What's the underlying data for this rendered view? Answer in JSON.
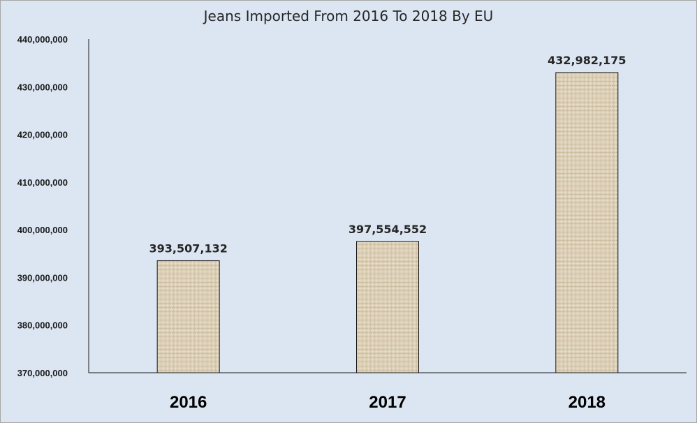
{
  "chart_data": {
    "type": "bar",
    "title": "Jeans Imported From 2016 To 2018 By EU",
    "xlabel": "",
    "ylabel": "",
    "categories": [
      "2016",
      "2017",
      "2018"
    ],
    "values": [
      393507132,
      397554552,
      432982175
    ],
    "data_labels": [
      "393,507,132",
      "397,554,552",
      "432,982,175"
    ],
    "ylim": [
      370000000,
      440000000
    ],
    "yticks": [
      370000000,
      380000000,
      390000000,
      400000000,
      410000000,
      420000000,
      430000000,
      440000000
    ],
    "ytick_labels": [
      "370,000,000",
      "380,000,000",
      "390,000,000",
      "400,000,000",
      "410,000,000",
      "420,000,000",
      "430,000,000",
      "440,000,000"
    ],
    "grid": false,
    "legend": "none",
    "colors": {
      "background": "#dce6f2",
      "bar_fill": "#ddd0b8",
      "bar_stroke": "#1a1a1a",
      "axis": "#1a1a1a"
    }
  }
}
